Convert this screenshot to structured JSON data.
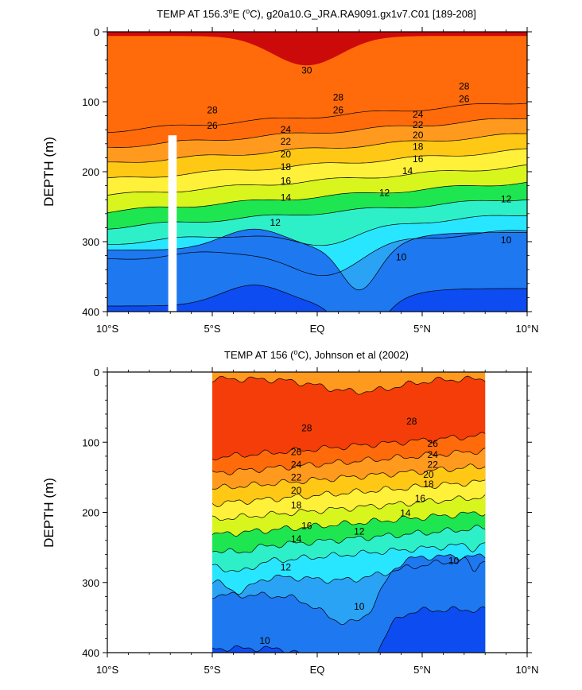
{
  "chart_data": [
    {
      "type": "contour",
      "title": "TEMP AT 156.3°E (°C), g20a10.G_JRA.RA9091.gx1v7.C01 [189-208]",
      "title_parts": {
        "pre": "TEMP AT 156.3",
        "deg1": "o",
        "mid": "E (",
        "deg2": "o",
        "post": "C), g20a10.G_JRA.RA9091.gx1v7.C01 [189-208]"
      },
      "xlabel": "",
      "ylabel": "DEPTH (m)",
      "xlim": [
        -10,
        10
      ],
      "ylim": [
        0,
        400
      ],
      "x_ticks": [
        {
          "value": -10,
          "label": "10°S"
        },
        {
          "value": -5,
          "label": "5°S"
        },
        {
          "value": 0,
          "label": "EQ"
        },
        {
          "value": 5,
          "label": "5°N"
        },
        {
          "value": 10,
          "label": "10°N"
        }
      ],
      "y_ticks": [
        0,
        100,
        200,
        300,
        400
      ],
      "contour_interval": 2,
      "data_range": [
        -10,
        10
      ],
      "missing_band": {
        "x": [
          -7.1,
          -6.7
        ],
        "depth_from": 148
      },
      "isotherm_labels": [
        {
          "level": 30,
          "x": -0.5,
          "depth": 55
        },
        {
          "level": 28,
          "x": -5.0,
          "depth": 112
        },
        {
          "level": 28,
          "x": 1.0,
          "depth": 94
        },
        {
          "level": 28,
          "x": 7.0,
          "depth": 78
        },
        {
          "level": 26,
          "x": -5.0,
          "depth": 134
        },
        {
          "level": 26,
          "x": 1.0,
          "depth": 112
        },
        {
          "level": 26,
          "x": 7.0,
          "depth": 96
        },
        {
          "level": 24,
          "x": -1.5,
          "depth": 140
        },
        {
          "level": 24,
          "x": 4.8,
          "depth": 118
        },
        {
          "level": 22,
          "x": -1.5,
          "depth": 157
        },
        {
          "level": 22,
          "x": 4.8,
          "depth": 133
        },
        {
          "level": 20,
          "x": -1.5,
          "depth": 175
        },
        {
          "level": 20,
          "x": 4.8,
          "depth": 148
        },
        {
          "level": 18,
          "x": -1.5,
          "depth": 193
        },
        {
          "level": 18,
          "x": 4.8,
          "depth": 164
        },
        {
          "level": 16,
          "x": -1.5,
          "depth": 213
        },
        {
          "level": 16,
          "x": 4.8,
          "depth": 182
        },
        {
          "level": 14,
          "x": -1.5,
          "depth": 237
        },
        {
          "level": 14,
          "x": 4.3,
          "depth": 199
        },
        {
          "level": 12,
          "x": -2.0,
          "depth": 273
        },
        {
          "level": 12,
          "x": 3.2,
          "depth": 230
        },
        {
          "level": 12,
          "x": 9.0,
          "depth": 239
        },
        {
          "level": 10,
          "x": 4.0,
          "depth": 322
        },
        {
          "level": 10,
          "x": 9.0,
          "depth": 298
        }
      ]
    },
    {
      "type": "contour",
      "title": "TEMP AT 156 (°C), Johnson et al (2002)",
      "title_parts": {
        "pre": "TEMP AT 156 (",
        "deg1": "o",
        "post": "C), Johnson et al (2002)"
      },
      "xlabel": "",
      "ylabel": "DEPTH (m)",
      "xlim": [
        -10,
        10
      ],
      "ylim": [
        0,
        400
      ],
      "x_ticks": [
        {
          "value": -10,
          "label": "10°S"
        },
        {
          "value": -5,
          "label": "5°S"
        },
        {
          "value": 0,
          "label": "EQ"
        },
        {
          "value": 5,
          "label": "5°N"
        },
        {
          "value": 10,
          "label": "10°N"
        }
      ],
      "y_ticks": [
        0,
        100,
        200,
        300,
        400
      ],
      "contour_interval": 2,
      "data_range": [
        -5,
        8
      ],
      "isotherm_labels": [
        {
          "level": 28,
          "x": -0.5,
          "depth": 80
        },
        {
          "level": 28,
          "x": 4.5,
          "depth": 70
        },
        {
          "level": 26,
          "x": -1.0,
          "depth": 114
        },
        {
          "level": 26,
          "x": 5.5,
          "depth": 102
        },
        {
          "level": 24,
          "x": -1.0,
          "depth": 132
        },
        {
          "level": 24,
          "x": 5.5,
          "depth": 118
        },
        {
          "level": 22,
          "x": -1.0,
          "depth": 150
        },
        {
          "level": 22,
          "x": 5.5,
          "depth": 132
        },
        {
          "level": 20,
          "x": -1.0,
          "depth": 169
        },
        {
          "level": 20,
          "x": 5.3,
          "depth": 146
        },
        {
          "level": 18,
          "x": -1.0,
          "depth": 190
        },
        {
          "level": 18,
          "x": 5.3,
          "depth": 160
        },
        {
          "level": 16,
          "x": -0.5,
          "depth": 219
        },
        {
          "level": 16,
          "x": 4.9,
          "depth": 180
        },
        {
          "level": 14,
          "x": -1.0,
          "depth": 238
        },
        {
          "level": 14,
          "x": 4.2,
          "depth": 201
        },
        {
          "level": 12,
          "x": -1.5,
          "depth": 278
        },
        {
          "level": 12,
          "x": 2.0,
          "depth": 227
        },
        {
          "level": 10,
          "x": 2.0,
          "depth": 334
        },
        {
          "level": 10,
          "x": -2.5,
          "depth": 383
        },
        {
          "level": 10,
          "x": 6.5,
          "depth": 269
        }
      ]
    }
  ]
}
